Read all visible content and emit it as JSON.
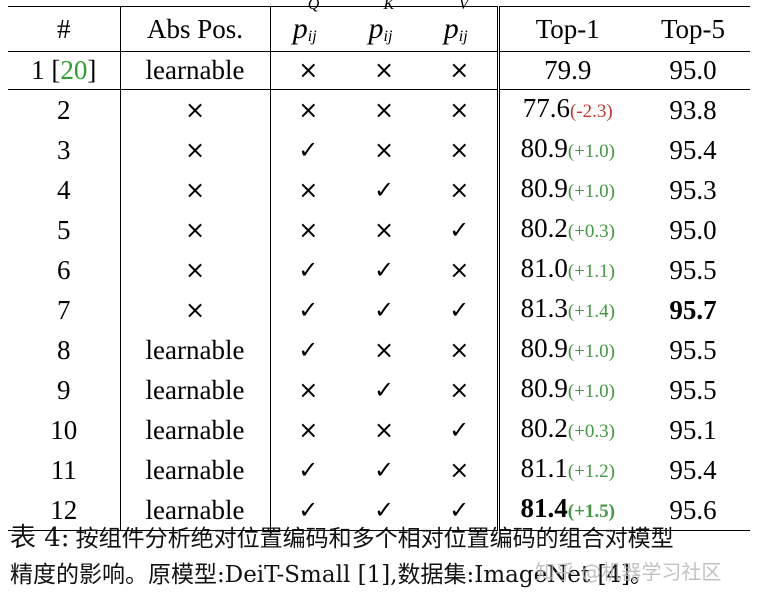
{
  "table": {
    "headers": {
      "num": "#",
      "abs_pos": "Abs Pos.",
      "p_q": {
        "base": "p",
        "sup": "Q",
        "sub": "ij"
      },
      "p_k": {
        "base": "p",
        "sup": "K",
        "sub": "ij"
      },
      "p_v": {
        "base": "p",
        "sup": "V",
        "sub": "ij"
      },
      "top1": "Top-1",
      "top5": "Top-5"
    },
    "baseline": {
      "num": "1 [",
      "cite": "20",
      "num_close": "]",
      "abs_pos": "learnable",
      "q": "×",
      "k": "×",
      "v": "×",
      "top1": "79.9",
      "top5": "95.0"
    },
    "rows": [
      {
        "num": "2",
        "abs_pos": "×",
        "q": "×",
        "k": "×",
        "v": "×",
        "top1": "77.6",
        "delta": "(-2.3)",
        "delta_sign": "neg",
        "top5": "93.8"
      },
      {
        "num": "3",
        "abs_pos": "×",
        "q": "✓",
        "k": "×",
        "v": "×",
        "top1": "80.9",
        "delta": "(+1.0)",
        "delta_sign": "pos",
        "top5": "95.4"
      },
      {
        "num": "4",
        "abs_pos": "×",
        "q": "×",
        "k": "✓",
        "v": "×",
        "top1": "80.9",
        "delta": "(+1.0)",
        "delta_sign": "pos",
        "top5": "95.3"
      },
      {
        "num": "5",
        "abs_pos": "×",
        "q": "×",
        "k": "×",
        "v": "✓",
        "top1": "80.2",
        "delta": "(+0.3)",
        "delta_sign": "pos",
        "top5": "95.0"
      },
      {
        "num": "6",
        "abs_pos": "×",
        "q": "✓",
        "k": "✓",
        "v": "×",
        "top1": "81.0",
        "delta": "(+1.1)",
        "delta_sign": "pos",
        "top5": "95.5"
      },
      {
        "num": "7",
        "abs_pos": "×",
        "q": "✓",
        "k": "✓",
        "v": "✓",
        "top1": "81.3",
        "delta": "(+1.4)",
        "delta_sign": "pos",
        "top5": "95.7",
        "top5_bold": true
      },
      {
        "num": "8",
        "abs_pos": "learnable",
        "q": "✓",
        "k": "×",
        "v": "×",
        "top1": "80.9",
        "delta": "(+1.0)",
        "delta_sign": "pos",
        "top5": "95.5"
      },
      {
        "num": "9",
        "abs_pos": "learnable",
        "q": "×",
        "k": "✓",
        "v": "×",
        "top1": "80.9",
        "delta": "(+1.0)",
        "delta_sign": "pos",
        "top5": "95.5"
      },
      {
        "num": "10",
        "abs_pos": "learnable",
        "q": "×",
        "k": "×",
        "v": "✓",
        "top1": "80.2",
        "delta": "(+0.3)",
        "delta_sign": "pos",
        "top5": "95.1"
      },
      {
        "num": "11",
        "abs_pos": "learnable",
        "q": "✓",
        "k": "✓",
        "v": "×",
        "top1": "81.1",
        "delta": "(+1.2)",
        "delta_sign": "pos",
        "top5": "95.4"
      },
      {
        "num": "12",
        "abs_pos": "learnable",
        "q": "✓",
        "k": "✓",
        "v": "✓",
        "top1": "81.4",
        "delta": "(+1.5)",
        "delta_sign": "pos",
        "top5": "95.6",
        "top1_bold": true
      }
    ]
  },
  "caption": {
    "label": "表 4:",
    "text_line1": "按组件分析绝对位置编码和多个相对位置编码的组合对模型",
    "text_line2": "精度的影响。原模型:DeiT-Small [1],数据集:ImageNet [4]。"
  },
  "watermark": "知乎 @机器学习社区",
  "colors": {
    "citation": "#2ca02c",
    "delta_positive": "#3f9a3f",
    "delta_negative": "#c0392b"
  }
}
